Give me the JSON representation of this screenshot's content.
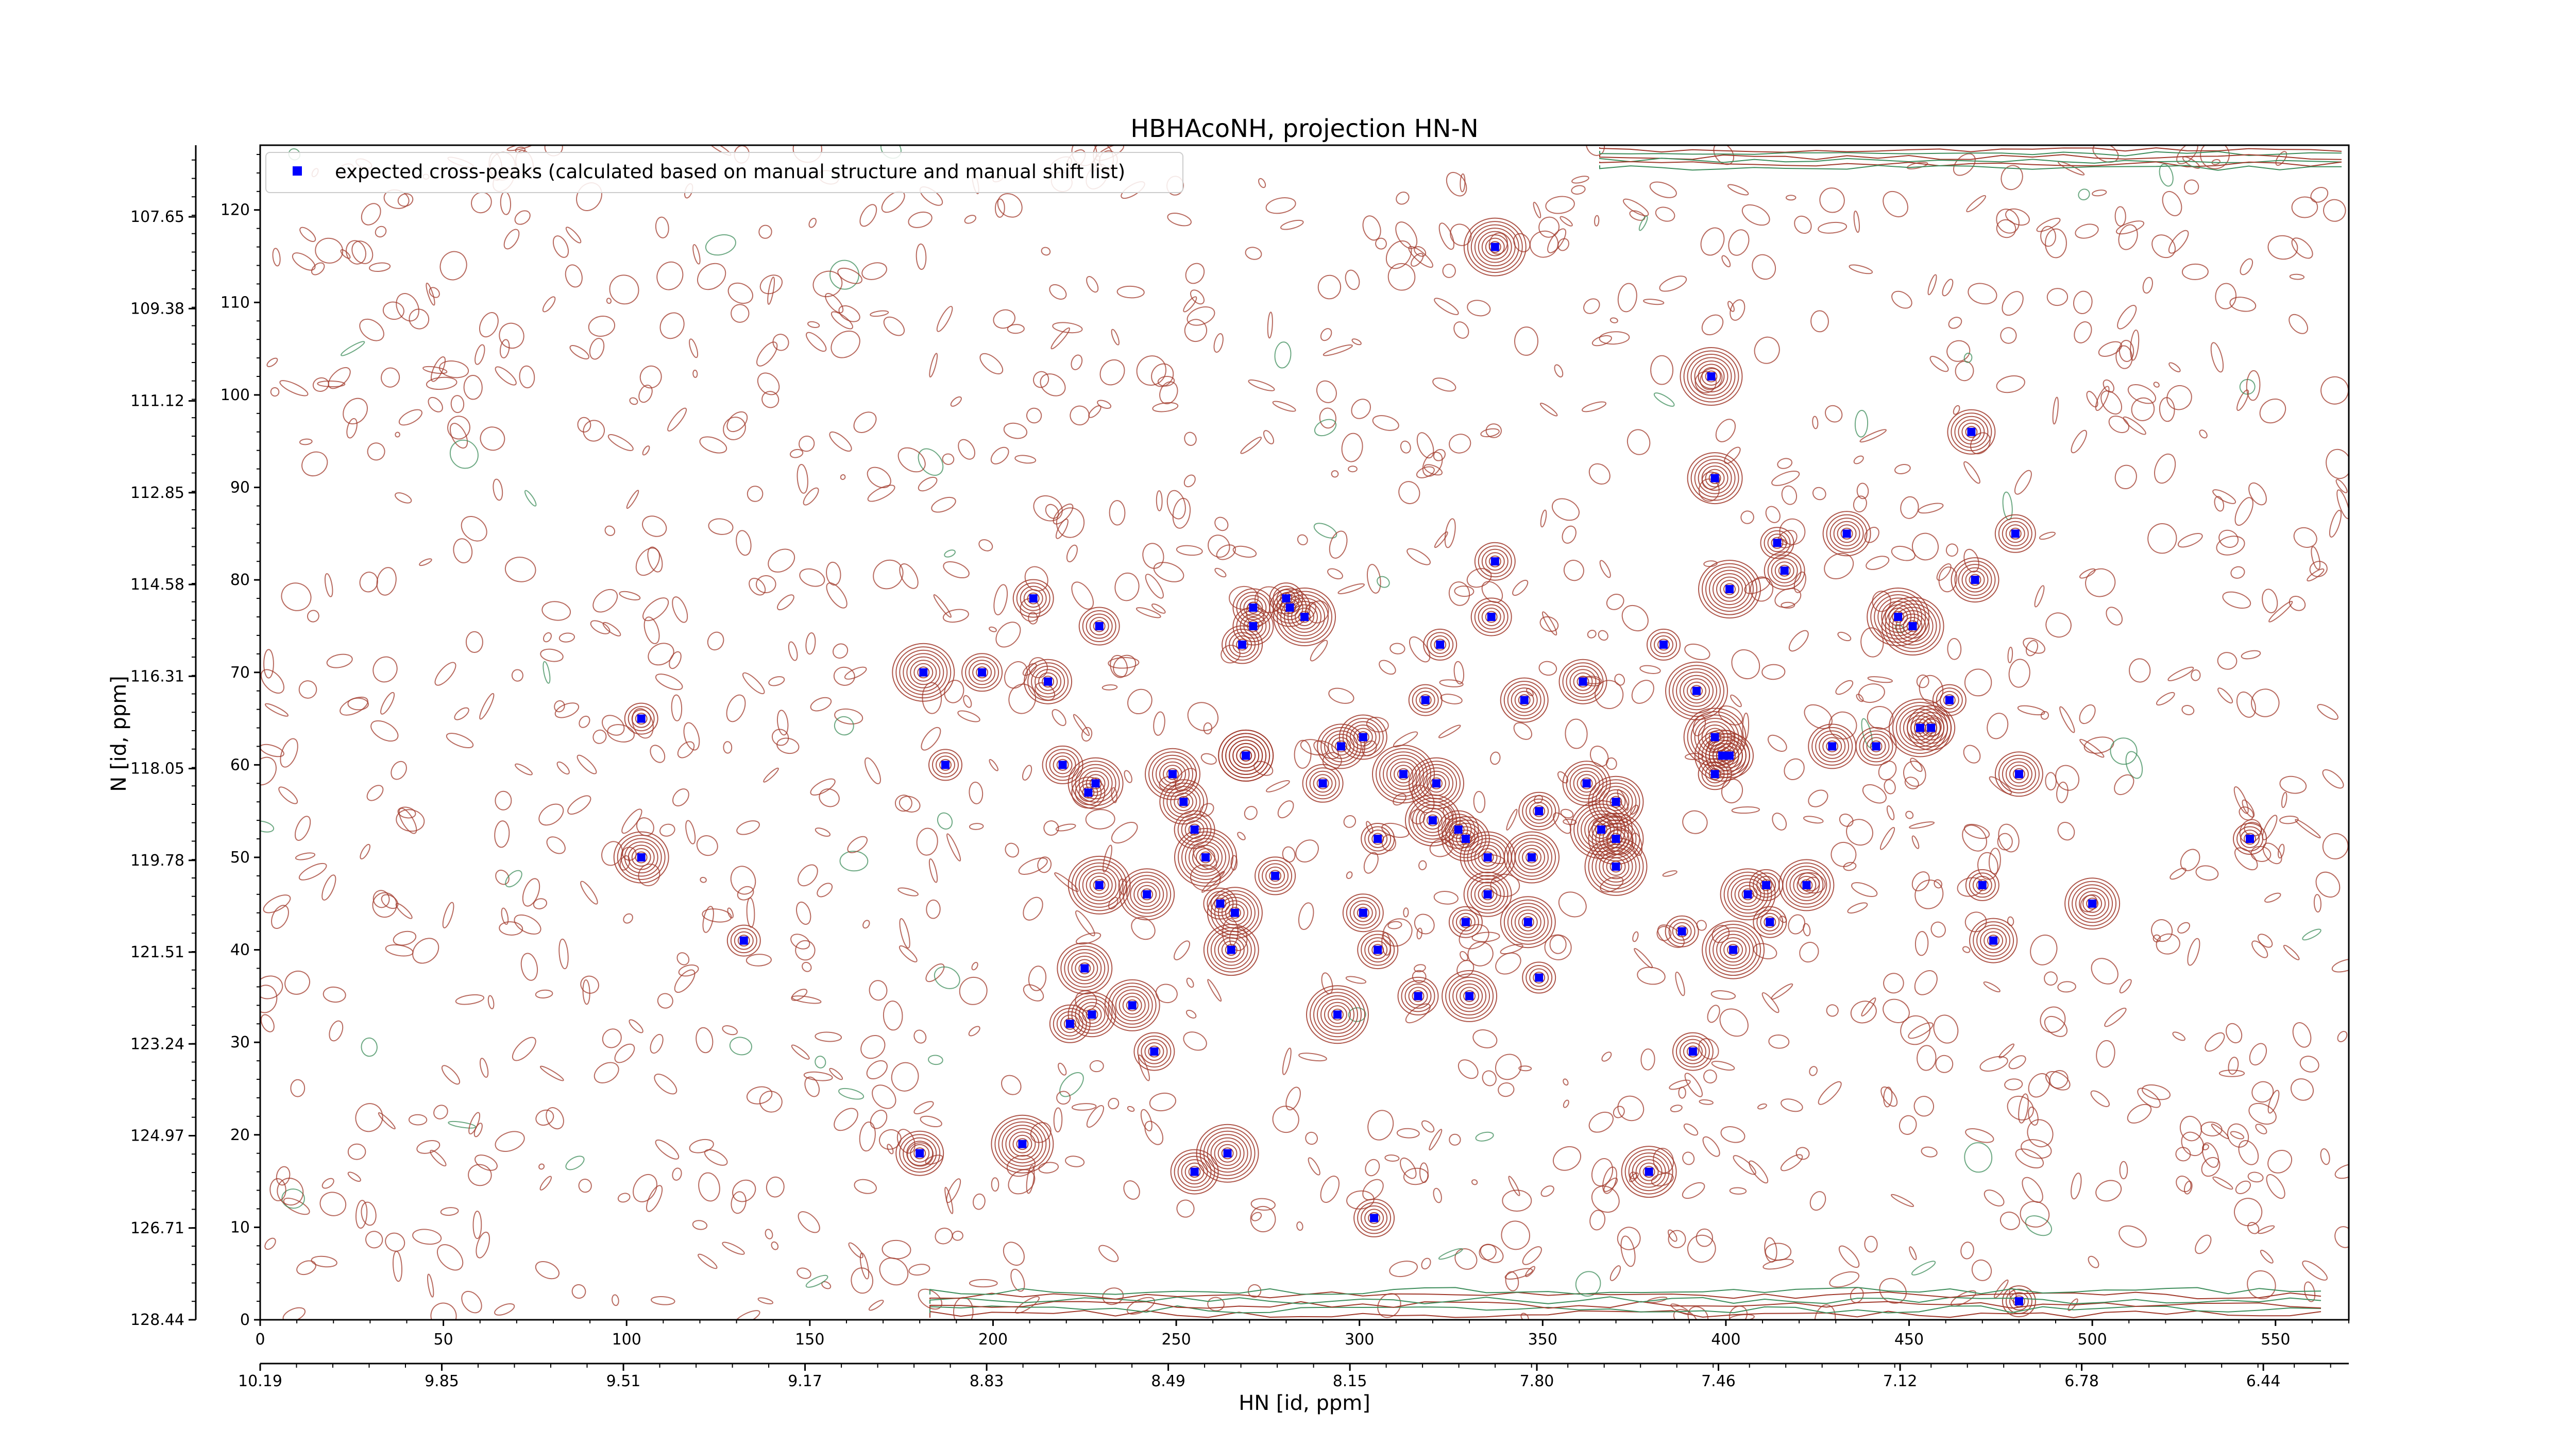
{
  "chart_data": {
    "type": "scatter",
    "title": "HBHAcoNH, projection HN-N",
    "xlabel": "HN [id, ppm]",
    "ylabel": "N [id, ppm]",
    "legend_position": "top-left",
    "grid": false,
    "x_index_axis": {
      "range": [
        0,
        570
      ],
      "ticks": [
        0,
        50,
        100,
        150,
        200,
        250,
        300,
        350,
        400,
        450,
        500,
        550
      ]
    },
    "x_ppm_axis": {
      "range": [
        10.19,
        6.28
      ],
      "ticks": [
        "10.19",
        "9.85",
        "9.51",
        "9.17",
        "8.83",
        "8.49",
        "8.15",
        "7.80",
        "7.46",
        "7.12",
        "6.78",
        "6.44"
      ]
    },
    "y_index_axis": {
      "range": [
        0,
        127
      ],
      "ticks": [
        0,
        10,
        20,
        30,
        40,
        50,
        60,
        70,
        80,
        90,
        100,
        110,
        120
      ]
    },
    "y_ppm_axis": {
      "range": [
        128.44,
        106.3
      ],
      "ticks": [
        "128.44",
        "126.71",
        "124.97",
        "123.24",
        "121.51",
        "119.78",
        "118.05",
        "116.31",
        "114.58",
        "112.85",
        "111.12",
        "109.38",
        "107.65"
      ]
    },
    "series": [
      {
        "name": "expected cross-peaks (calculated based on manual structure and manual shift list)",
        "color": "#0000ff",
        "marker": "square",
        "x": [
          104,
          104,
          132,
          180,
          187,
          181,
          197,
          208,
          211,
          215,
          219,
          226,
          225,
          221,
          227,
          229,
          228,
          229,
          238,
          242,
          244,
          249,
          252,
          255,
          255,
          258,
          264,
          262,
          265,
          266,
          268,
          269,
          269,
          271,
          271,
          277,
          281,
          280,
          285,
          301,
          295,
          294,
          290,
          301,
          304,
          305,
          305,
          312,
          316,
          318,
          320,
          321,
          322,
          327,
          329,
          329,
          330,
          335,
          335,
          336,
          337,
          337,
          345,
          347,
          349,
          349,
          346,
          362,
          361,
          366,
          370,
          370,
          370,
          379,
          383,
          388,
          392,
          391,
          397,
          396,
          397,
          397,
          399,
          401,
          401,
          402,
          406,
          411,
          412,
          414,
          416,
          422,
          429,
          433,
          441,
          447,
          451,
          453,
          461,
          456,
          467,
          468,
          470,
          473,
          479,
          480,
          480,
          500,
          543
        ],
        "y": [
          65,
          50,
          41,
          18,
          60,
          70,
          70,
          19,
          78,
          69,
          60,
          57,
          38,
          32,
          33,
          75,
          58,
          47,
          34,
          46,
          29,
          59,
          56,
          53,
          16,
          50,
          18,
          45,
          40,
          44,
          73,
          61,
          61,
          75,
          77,
          48,
          77,
          78,
          76,
          63,
          62,
          33,
          58,
          44,
          11,
          40,
          52,
          59,
          35,
          67,
          54,
          58,
          73,
          53,
          52,
          43,
          35,
          46,
          50,
          76,
          82,
          116,
          67,
          50,
          55,
          37,
          43,
          58,
          69,
          53,
          52,
          56,
          49,
          16,
          73,
          42,
          68,
          29,
          91,
          102,
          59,
          63,
          61,
          79,
          61,
          40,
          46,
          47,
          43,
          84,
          81,
          47,
          62,
          85,
          62,
          76,
          75,
          64,
          67,
          64,
          96,
          80,
          47,
          41,
          85,
          59,
          2,
          45,
          52
        ]
      }
    ]
  }
}
